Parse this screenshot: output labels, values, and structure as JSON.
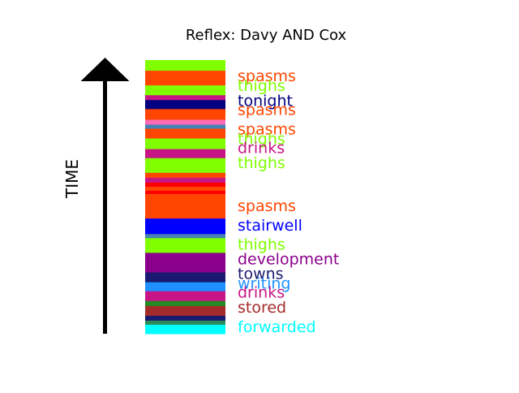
{
  "chart_data": {
    "type": "timeline-strip",
    "title": "Reflex: Davy AND Cox",
    "ylabel": "TIME",
    "segments": [
      {
        "color": "#7FFF00",
        "size": 13
      },
      {
        "color": "#FF4500",
        "size": 18
      },
      {
        "color": "#7FFF00",
        "size": 12
      },
      {
        "color": "#C71585",
        "size": 6
      },
      {
        "color": "#000080",
        "size": 11
      },
      {
        "color": "#FF4500",
        "size": 13
      },
      {
        "color": "#FF69B4",
        "size": 6
      },
      {
        "color": "#4682B4",
        "size": 5
      },
      {
        "color": "#FF4500",
        "size": 12
      },
      {
        "color": "#7FFF00",
        "size": 13
      },
      {
        "color": "#C71585",
        "size": 11
      },
      {
        "color": "#7FFF00",
        "size": 18
      },
      {
        "color": "#FF4500",
        "size": 6
      },
      {
        "color": "#C71585",
        "size": 6
      },
      {
        "color": "#FF0000",
        "size": 5
      },
      {
        "color": "#FF4500",
        "size": 5
      },
      {
        "color": "#FF0000",
        "size": 4
      },
      {
        "color": "#FF4500",
        "size": 30
      },
      {
        "color": "#0000FF",
        "size": 19
      },
      {
        "color": "#4682B4",
        "size": 5
      },
      {
        "color": "#7FFF00",
        "size": 18
      },
      {
        "color": "#8B008B",
        "size": 24
      },
      {
        "color": "#191970",
        "size": 12
      },
      {
        "color": "#1E90FF",
        "size": 11
      },
      {
        "color": "#C71585",
        "size": 12
      },
      {
        "color": "#228B22",
        "size": 6
      },
      {
        "color": "#A52A2A",
        "size": 12
      },
      {
        "color": "#191970",
        "size": 6
      },
      {
        "color": "#2E8B57",
        "size": 5
      },
      {
        "color": "#00FFFF",
        "size": 11
      }
    ],
    "labels": [
      {
        "text": "spasms",
        "color": "#FF4500",
        "pos": 20
      },
      {
        "text": "thighs",
        "color": "#7FFF00",
        "pos": 32
      },
      {
        "text": "tonight",
        "color": "#000080",
        "pos": 50
      },
      {
        "text": "spasms",
        "color": "#FF4500",
        "pos": 61
      },
      {
        "text": "spasms",
        "color": "#FF4500",
        "pos": 85
      },
      {
        "text": "thighs",
        "color": "#7FFF00",
        "pos": 97
      },
      {
        "text": "drinks",
        "color": "#C71585",
        "pos": 108
      },
      {
        "text": "thighs",
        "color": "#7FFF00",
        "pos": 126
      },
      {
        "text": "spasms",
        "color": "#FF4500",
        "pos": 179
      },
      {
        "text": "stairwell",
        "color": "#0000FF",
        "pos": 203
      },
      {
        "text": "thighs",
        "color": "#7FFF00",
        "pos": 226
      },
      {
        "text": "development",
        "color": "#8B008B",
        "pos": 244
      },
      {
        "text": "towns",
        "color": "#191970",
        "pos": 262
      },
      {
        "text": "writing",
        "color": "#1E90FF",
        "pos": 274
      },
      {
        "text": "drinks",
        "color": "#C71585",
        "pos": 285
      },
      {
        "text": "stored",
        "color": "#A52A2A",
        "pos": 303
      },
      {
        "text": "forwarded",
        "color": "#00FFFF",
        "pos": 327
      }
    ]
  }
}
